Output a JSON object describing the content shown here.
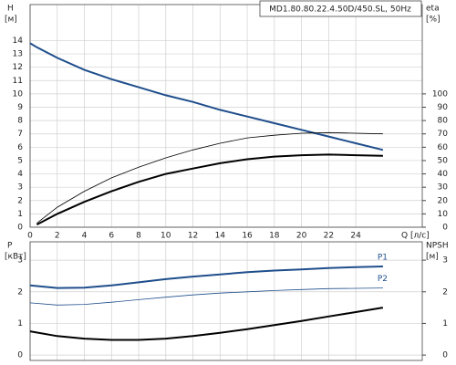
{
  "chart_data": [
    {
      "type": "line",
      "title": "MD1.80.80.22.4.50D/450.SL, 50Hz",
      "x_label": "Q [л/с]",
      "y_label": "H",
      "y_unit": "[м]",
      "y2_label": "eta",
      "y2_unit": "[%]",
      "x": [
        0,
        0.5,
        2,
        4,
        6,
        8,
        10,
        12,
        14,
        16,
        18,
        20,
        22,
        24,
        26
      ],
      "xlim": [
        0,
        28.9
      ],
      "xticks": [
        0,
        2,
        4,
        6,
        8,
        10,
        12,
        14,
        16,
        18,
        20,
        22,
        24
      ],
      "ylim": [
        0,
        16.7
      ],
      "yticks": [
        0,
        1,
        2,
        3,
        4,
        5,
        6,
        7,
        8,
        9,
        10,
        11,
        12,
        13,
        14
      ],
      "y2lim": [
        0,
        167
      ],
      "y2ticks": [
        0,
        10,
        20,
        30,
        40,
        50,
        60,
        70,
        80,
        90,
        100
      ],
      "grid": true,
      "series": [
        {
          "color": "#1f4e8c",
          "width": 2,
          "values": [
            13.8,
            13.5,
            12.7,
            11.8,
            11.1,
            10.5,
            9.9,
            9.4,
            8.8,
            8.3,
            7.8,
            7.3,
            6.8,
            6.3,
            5.8
          ]
        },
        {
          "color": "#000000",
          "width": 0.8,
          "axis": "y2",
          "values": [
            null,
            3,
            15,
            27,
            37,
            45,
            52,
            58,
            63,
            67,
            69,
            70.5,
            71,
            70.5,
            70
          ]
        },
        {
          "color": "#000000",
          "width": 2,
          "axis": "y2",
          "values": [
            null,
            2,
            10,
            19,
            27,
            34,
            40,
            44,
            48,
            51,
            53,
            54,
            54.5,
            54,
            53.5
          ]
        }
      ]
    },
    {
      "type": "line",
      "y_label": "P",
      "y_unit": "[кВт]",
      "y2_label": "NPSH",
      "y2_unit": "[м]",
      "x": [
        0,
        2,
        4,
        6,
        8,
        10,
        12,
        14,
        16,
        18,
        20,
        22,
        24,
        26
      ],
      "xlim": [
        0,
        28.9
      ],
      "ylim": [
        -0.17,
        3.58
      ],
      "yticks": [
        0,
        1,
        2,
        3
      ],
      "y2lim": [
        -0.17,
        3.58
      ],
      "y2ticks": [
        0,
        1,
        2,
        3
      ],
      "grid": true,
      "series": [
        {
          "name": "P1",
          "color": "#1f4e8c",
          "width": 2,
          "values": [
            2.2,
            2.12,
            2.13,
            2.2,
            2.3,
            2.4,
            2.48,
            2.55,
            2.62,
            2.67,
            2.71,
            2.75,
            2.78,
            2.8
          ]
        },
        {
          "name": "P2",
          "color": "#1f4e8c",
          "width": 0.8,
          "values": [
            1.65,
            1.58,
            1.6,
            1.67,
            1.75,
            1.83,
            1.9,
            1.96,
            2.0,
            2.04,
            2.07,
            2.1,
            2.11,
            2.12
          ]
        },
        {
          "color": "#000000",
          "width": 2,
          "axis": "y2",
          "values": [
            0.75,
            0.6,
            0.52,
            0.48,
            0.48,
            0.52,
            0.6,
            0.7,
            0.82,
            0.95,
            1.08,
            1.22,
            1.36,
            1.5
          ]
        }
      ]
    }
  ]
}
